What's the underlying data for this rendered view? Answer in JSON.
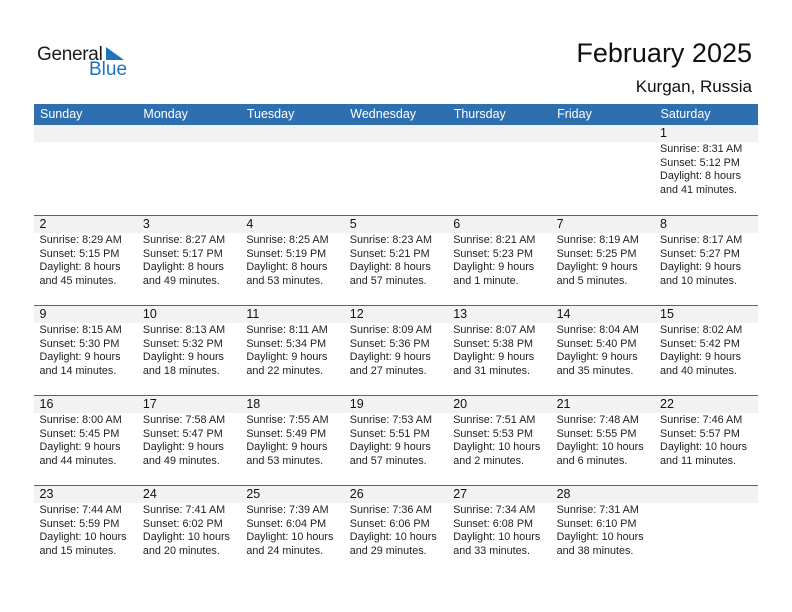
{
  "logo": {
    "general": "General",
    "blue": "Blue"
  },
  "title": "February 2025",
  "location": "Kurgan, Russia",
  "colors": {
    "header": "#2e6fb0",
    "band": "#f2f2f2",
    "brand_blue": "#1e73be"
  },
  "weekdays": [
    "Sunday",
    "Monday",
    "Tuesday",
    "Wednesday",
    "Thursday",
    "Friday",
    "Saturday"
  ],
  "weeks": [
    [
      null,
      null,
      null,
      null,
      null,
      null,
      {
        "day": "1",
        "sunrise": "Sunrise: 8:31 AM",
        "sunset": "Sunset: 5:12 PM",
        "daylight": "Daylight: 8 hours",
        "minutes": "and 41 minutes."
      }
    ],
    [
      {
        "day": "2",
        "sunrise": "Sunrise: 8:29 AM",
        "sunset": "Sunset: 5:15 PM",
        "daylight": "Daylight: 8 hours",
        "minutes": "and 45 minutes."
      },
      {
        "day": "3",
        "sunrise": "Sunrise: 8:27 AM",
        "sunset": "Sunset: 5:17 PM",
        "daylight": "Daylight: 8 hours",
        "minutes": "and 49 minutes."
      },
      {
        "day": "4",
        "sunrise": "Sunrise: 8:25 AM",
        "sunset": "Sunset: 5:19 PM",
        "daylight": "Daylight: 8 hours",
        "minutes": "and 53 minutes."
      },
      {
        "day": "5",
        "sunrise": "Sunrise: 8:23 AM",
        "sunset": "Sunset: 5:21 PM",
        "daylight": "Daylight: 8 hours",
        "minutes": "and 57 minutes."
      },
      {
        "day": "6",
        "sunrise": "Sunrise: 8:21 AM",
        "sunset": "Sunset: 5:23 PM",
        "daylight": "Daylight: 9 hours",
        "minutes": "and 1 minute."
      },
      {
        "day": "7",
        "sunrise": "Sunrise: 8:19 AM",
        "sunset": "Sunset: 5:25 PM",
        "daylight": "Daylight: 9 hours",
        "minutes": "and 5 minutes."
      },
      {
        "day": "8",
        "sunrise": "Sunrise: 8:17 AM",
        "sunset": "Sunset: 5:27 PM",
        "daylight": "Daylight: 9 hours",
        "minutes": "and 10 minutes."
      }
    ],
    [
      {
        "day": "9",
        "sunrise": "Sunrise: 8:15 AM",
        "sunset": "Sunset: 5:30 PM",
        "daylight": "Daylight: 9 hours",
        "minutes": "and 14 minutes."
      },
      {
        "day": "10",
        "sunrise": "Sunrise: 8:13 AM",
        "sunset": "Sunset: 5:32 PM",
        "daylight": "Daylight: 9 hours",
        "minutes": "and 18 minutes."
      },
      {
        "day": "11",
        "sunrise": "Sunrise: 8:11 AM",
        "sunset": "Sunset: 5:34 PM",
        "daylight": "Daylight: 9 hours",
        "minutes": "and 22 minutes."
      },
      {
        "day": "12",
        "sunrise": "Sunrise: 8:09 AM",
        "sunset": "Sunset: 5:36 PM",
        "daylight": "Daylight: 9 hours",
        "minutes": "and 27 minutes."
      },
      {
        "day": "13",
        "sunrise": "Sunrise: 8:07 AM",
        "sunset": "Sunset: 5:38 PM",
        "daylight": "Daylight: 9 hours",
        "minutes": "and 31 minutes."
      },
      {
        "day": "14",
        "sunrise": "Sunrise: 8:04 AM",
        "sunset": "Sunset: 5:40 PM",
        "daylight": "Daylight: 9 hours",
        "minutes": "and 35 minutes."
      },
      {
        "day": "15",
        "sunrise": "Sunrise: 8:02 AM",
        "sunset": "Sunset: 5:42 PM",
        "daylight": "Daylight: 9 hours",
        "minutes": "and 40 minutes."
      }
    ],
    [
      {
        "day": "16",
        "sunrise": "Sunrise: 8:00 AM",
        "sunset": "Sunset: 5:45 PM",
        "daylight": "Daylight: 9 hours",
        "minutes": "and 44 minutes."
      },
      {
        "day": "17",
        "sunrise": "Sunrise: 7:58 AM",
        "sunset": "Sunset: 5:47 PM",
        "daylight": "Daylight: 9 hours",
        "minutes": "and 49 minutes."
      },
      {
        "day": "18",
        "sunrise": "Sunrise: 7:55 AM",
        "sunset": "Sunset: 5:49 PM",
        "daylight": "Daylight: 9 hours",
        "minutes": "and 53 minutes."
      },
      {
        "day": "19",
        "sunrise": "Sunrise: 7:53 AM",
        "sunset": "Sunset: 5:51 PM",
        "daylight": "Daylight: 9 hours",
        "minutes": "and 57 minutes."
      },
      {
        "day": "20",
        "sunrise": "Sunrise: 7:51 AM",
        "sunset": "Sunset: 5:53 PM",
        "daylight": "Daylight: 10 hours",
        "minutes": "and 2 minutes."
      },
      {
        "day": "21",
        "sunrise": "Sunrise: 7:48 AM",
        "sunset": "Sunset: 5:55 PM",
        "daylight": "Daylight: 10 hours",
        "minutes": "and 6 minutes."
      },
      {
        "day": "22",
        "sunrise": "Sunrise: 7:46 AM",
        "sunset": "Sunset: 5:57 PM",
        "daylight": "Daylight: 10 hours",
        "minutes": "and 11 minutes."
      }
    ],
    [
      {
        "day": "23",
        "sunrise": "Sunrise: 7:44 AM",
        "sunset": "Sunset: 5:59 PM",
        "daylight": "Daylight: 10 hours",
        "minutes": "and 15 minutes."
      },
      {
        "day": "24",
        "sunrise": "Sunrise: 7:41 AM",
        "sunset": "Sunset: 6:02 PM",
        "daylight": "Daylight: 10 hours",
        "minutes": "and 20 minutes."
      },
      {
        "day": "25",
        "sunrise": "Sunrise: 7:39 AM",
        "sunset": "Sunset: 6:04 PM",
        "daylight": "Daylight: 10 hours",
        "minutes": "and 24 minutes."
      },
      {
        "day": "26",
        "sunrise": "Sunrise: 7:36 AM",
        "sunset": "Sunset: 6:06 PM",
        "daylight": "Daylight: 10 hours",
        "minutes": "and 29 minutes."
      },
      {
        "day": "27",
        "sunrise": "Sunrise: 7:34 AM",
        "sunset": "Sunset: 6:08 PM",
        "daylight": "Daylight: 10 hours",
        "minutes": "and 33 minutes."
      },
      {
        "day": "28",
        "sunrise": "Sunrise: 7:31 AM",
        "sunset": "Sunset: 6:10 PM",
        "daylight": "Daylight: 10 hours",
        "minutes": "and 38 minutes."
      },
      null
    ]
  ]
}
